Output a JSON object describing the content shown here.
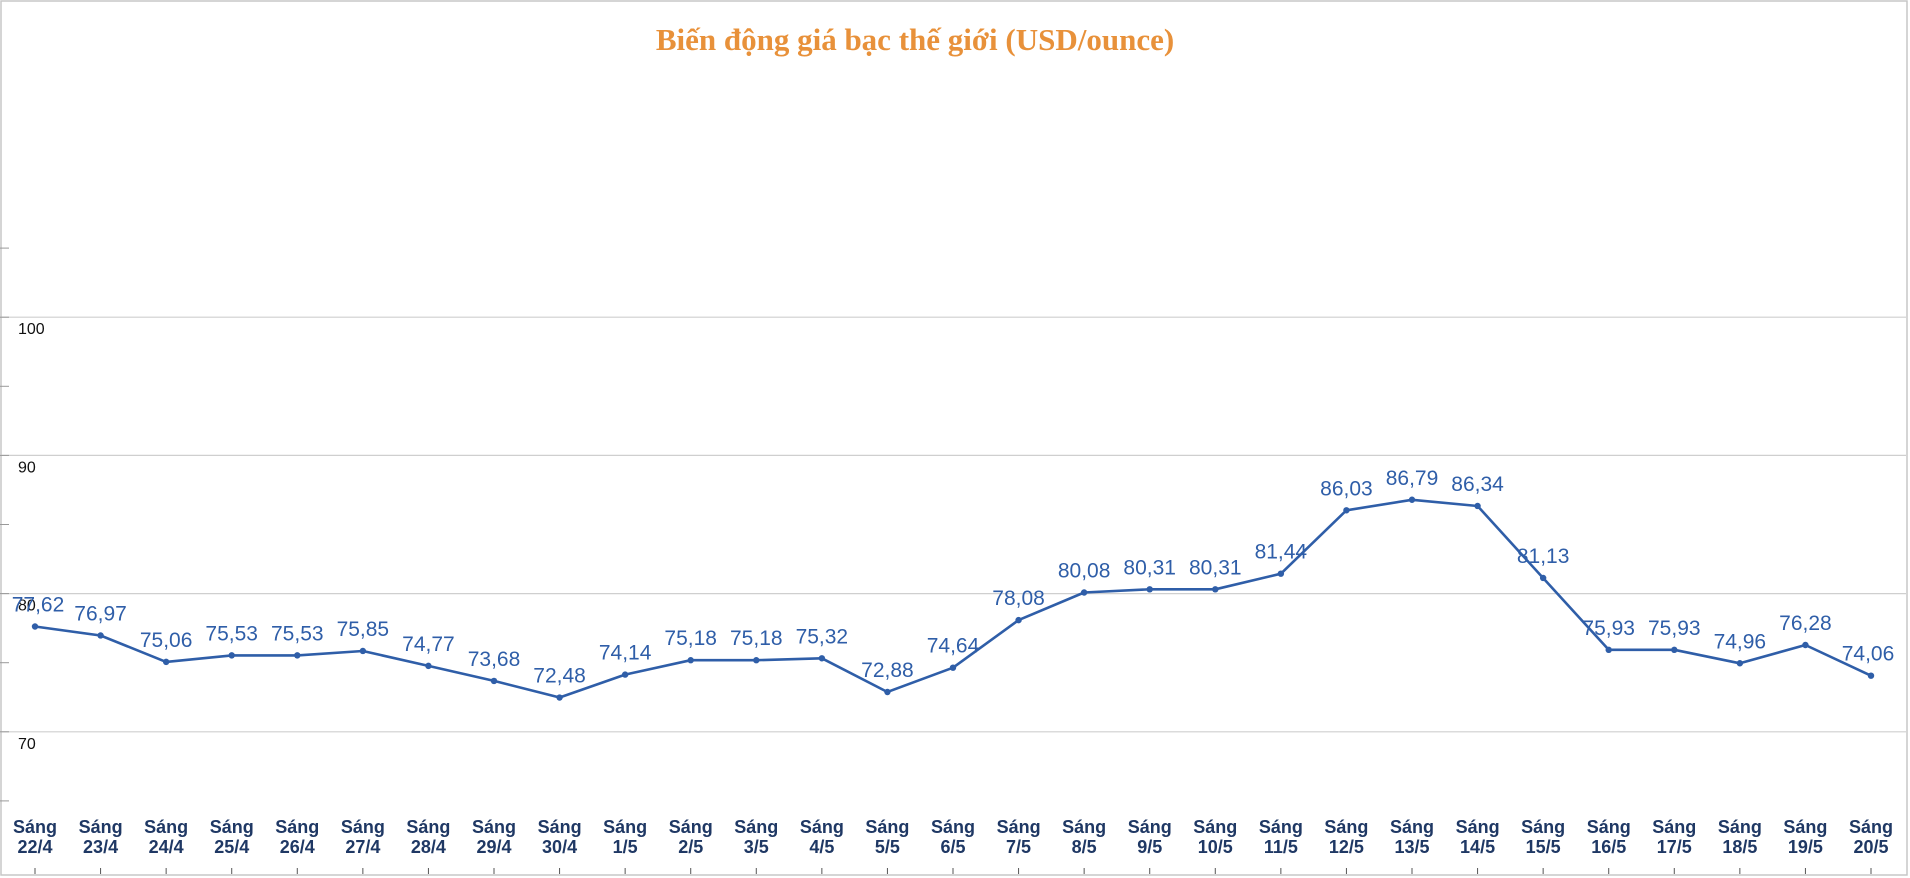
{
  "chart_data": {
    "type": "line",
    "title": "Biến động giá bạc thế giới (USD/ounce)",
    "xlabel": "",
    "ylabel": "",
    "ylim": [
      60,
      110
    ],
    "yticks": [
      70,
      80,
      90,
      100
    ],
    "grid": true,
    "categories": [
      "Sáng 22/4",
      "Sáng 23/4",
      "Sáng 24/4",
      "Sáng 25/4",
      "Sáng 26/4",
      "Sáng 27/4",
      "Sáng 28/4",
      "Sáng 29/4",
      "Sáng 30/4",
      "Sáng 1/5",
      "Sáng 2/5",
      "Sáng 3/5",
      "Sáng 4/5",
      "Sáng 5/5",
      "Sáng 6/5",
      "Sáng 7/5",
      "Sáng 8/5",
      "Sáng 9/5",
      "Sáng 10/5",
      "Sáng 11/5",
      "Sáng 12/5",
      "Sáng 13/5",
      "Sáng 14/5",
      "Sáng 15/5",
      "Sáng 16/5",
      "Sáng 17/5",
      "Sáng 18/5",
      "Sáng 19/5",
      "Sáng 20/5"
    ],
    "series": [
      {
        "values": [
          77.62,
          76.97,
          75.06,
          75.53,
          75.53,
          75.85,
          74.77,
          73.68,
          72.48,
          74.14,
          75.18,
          75.18,
          75.32,
          72.88,
          74.64,
          78.08,
          80.08,
          80.31,
          80.31,
          81.44,
          86.03,
          86.79,
          86.34,
          81.13,
          75.93,
          75.93,
          74.96,
          76.28,
          74.06
        ],
        "value_labels": [
          "77,62",
          "76,97",
          "75,06",
          "75,53",
          "75,53",
          "75,85",
          "74,77",
          "73,68",
          "72,48",
          "74,14",
          "75,18",
          "75,18",
          "75,32",
          "72,88",
          "74,64",
          "78,08",
          "80,08",
          "80,31",
          "80,31",
          "81,44",
          "86,03",
          "86,79",
          "86,34",
          "81,13",
          "75,93",
          "75,93",
          "74,96",
          "76,28",
          "74,06"
        ],
        "color": "#2f5ea8"
      }
    ]
  }
}
